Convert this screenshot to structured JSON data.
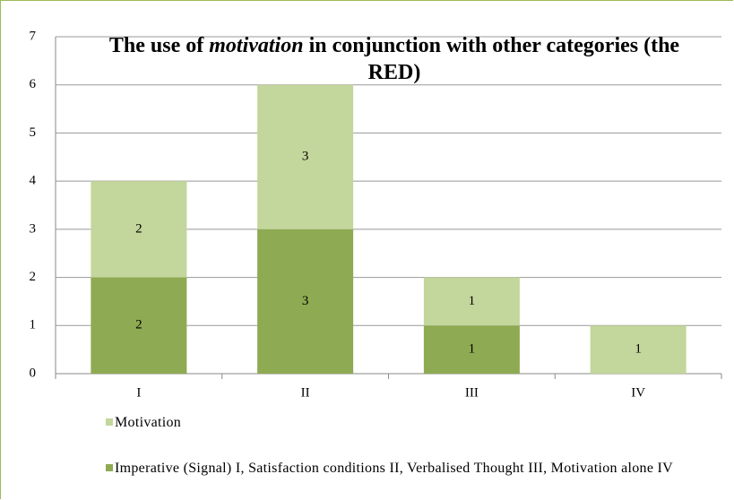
{
  "chart_data": {
    "type": "stacked_bar",
    "title": [
      "The use of",
      "motivation",
      "in conjunction with other categories (the RED)"
    ],
    "categories": [
      "I",
      "II",
      "III",
      "IV"
    ],
    "series": [
      {
        "name": "Imperative (Signal) I, Satisfaction conditions II, Verbalised Thought III, Motivation alone IV",
        "color": "#8eaa52",
        "values": [
          2,
          3,
          1,
          null
        ]
      },
      {
        "name": "Motivation",
        "color": "#c3d69b",
        "values": [
          2,
          3,
          1,
          1
        ]
      }
    ],
    "ylim": [
      0,
      7
    ],
    "yticks": [
      0,
      1,
      2,
      3,
      4,
      5,
      6,
      7
    ],
    "grid": true
  }
}
